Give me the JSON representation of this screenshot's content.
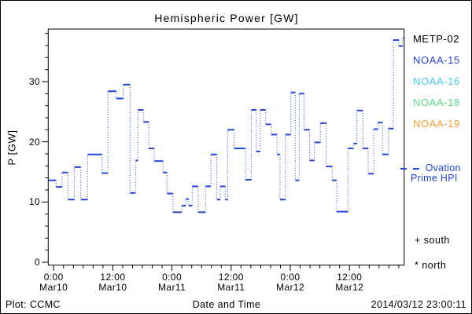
{
  "title": "Hemispheric Power [GW]",
  "axes": {
    "y_label": "P [GW]",
    "x_label": "Date and Time"
  },
  "footer": {
    "credit": "Plot: CCMC",
    "timestamp": "2014/03/12 23:00:11"
  },
  "legend": {
    "satellites": [
      {
        "label": "METP-02",
        "color": "#000000"
      },
      {
        "label": "NOAA-15",
        "color": "#2244dd"
      },
      {
        "label": "NOAA-16",
        "color": "#44c8f5"
      },
      {
        "label": "NOAA-18",
        "color": "#55dd88"
      },
      {
        "label": "NOAA-19",
        "color": "#f0a033"
      }
    ],
    "line": {
      "label_line1": "Ovation",
      "label_line2": "Prime HPI",
      "color": "#2244dd"
    },
    "markers": [
      {
        "symbol": "+",
        "label": "south"
      },
      {
        "symbol": "*",
        "label": "north"
      }
    ]
  },
  "chart_data": {
    "type": "line",
    "step": true,
    "title": "Hemispheric Power [GW]",
    "xlabel": "Date and Time",
    "ylabel": "P [GW]",
    "ylim": [
      0,
      38.7
    ],
    "y_major_ticks": [
      0,
      10,
      20,
      30
    ],
    "y_minor_step": 2,
    "x_unit": "hours since 2014-03-10 00:00",
    "xlim_hours": [
      -1.1,
      71.1
    ],
    "x_major_ticks": [
      {
        "hours": 0,
        "time": "0:00",
        "date": "Mar10"
      },
      {
        "hours": 12,
        "time": "12:00",
        "date": "Mar10"
      },
      {
        "hours": 24,
        "time": "0:00",
        "date": "Mar11"
      },
      {
        "hours": 36,
        "time": "12:00",
        "date": "Mar11"
      },
      {
        "hours": 48,
        "time": "0:00",
        "date": "Mar12"
      },
      {
        "hours": 60,
        "time": "12:00",
        "date": "Mar12"
      }
    ],
    "x_minor_step_hours": 2,
    "grid": false,
    "legend_position": "right-outside",
    "series": [
      {
        "name": "Ovation Prime HPI",
        "color": "#2244dd",
        "line_style": "stepped: solid horizontal segments, dotted vertical risers",
        "points": [
          [
            -1.1,
            13.6
          ],
          [
            0.5,
            12.5
          ],
          [
            1.7,
            14.9
          ],
          [
            2.9,
            10.4
          ],
          [
            4.2,
            15.8
          ],
          [
            5.5,
            10.4
          ],
          [
            6.9,
            17.9
          ],
          [
            9.8,
            14.8
          ],
          [
            11.0,
            28.4
          ],
          [
            12.7,
            27.2
          ],
          [
            14.1,
            29.5
          ],
          [
            15.5,
            11.5
          ],
          [
            16.6,
            16.9
          ],
          [
            17.1,
            25.3
          ],
          [
            18.2,
            23.3
          ],
          [
            19.3,
            18.9
          ],
          [
            20.4,
            16.8
          ],
          [
            22.2,
            14.9
          ],
          [
            23.0,
            11.4
          ],
          [
            24.2,
            8.3
          ],
          [
            26.0,
            9.4
          ],
          [
            26.8,
            10.5
          ],
          [
            27.4,
            9.4
          ],
          [
            28.1,
            12.6
          ],
          [
            29.3,
            8.3
          ],
          [
            30.8,
            12.6
          ],
          [
            31.9,
            17.9
          ],
          [
            33.1,
            10.4
          ],
          [
            33.8,
            12.6
          ],
          [
            34.8,
            10.4
          ],
          [
            35.3,
            22.0
          ],
          [
            36.6,
            18.9
          ],
          [
            38.9,
            13.7
          ],
          [
            40.1,
            25.3
          ],
          [
            41.1,
            18.4
          ],
          [
            41.9,
            25.3
          ],
          [
            43.0,
            22.9
          ],
          [
            44.1,
            21.2
          ],
          [
            45.3,
            17.9
          ],
          [
            45.9,
            10.4
          ],
          [
            47.0,
            21.2
          ],
          [
            48.1,
            28.2
          ],
          [
            49.0,
            13.6
          ],
          [
            49.8,
            28.0
          ],
          [
            50.8,
            22.0
          ],
          [
            51.9,
            16.9
          ],
          [
            52.9,
            19.9
          ],
          [
            54.1,
            23.1
          ],
          [
            55.3,
            15.9
          ],
          [
            56.5,
            13.6
          ],
          [
            57.4,
            8.4
          ],
          [
            59.7,
            18.9
          ],
          [
            60.8,
            19.7
          ],
          [
            61.5,
            25.2
          ],
          [
            62.7,
            18.9
          ],
          [
            63.8,
            14.7
          ],
          [
            64.9,
            22.1
          ],
          [
            65.8,
            23.2
          ],
          [
            66.7,
            17.9
          ],
          [
            67.9,
            22.2
          ],
          [
            68.9,
            36.9
          ],
          [
            70.0,
            35.9
          ],
          [
            70.8,
            37.2
          ],
          [
            71.1,
            37.2
          ]
        ]
      }
    ]
  }
}
